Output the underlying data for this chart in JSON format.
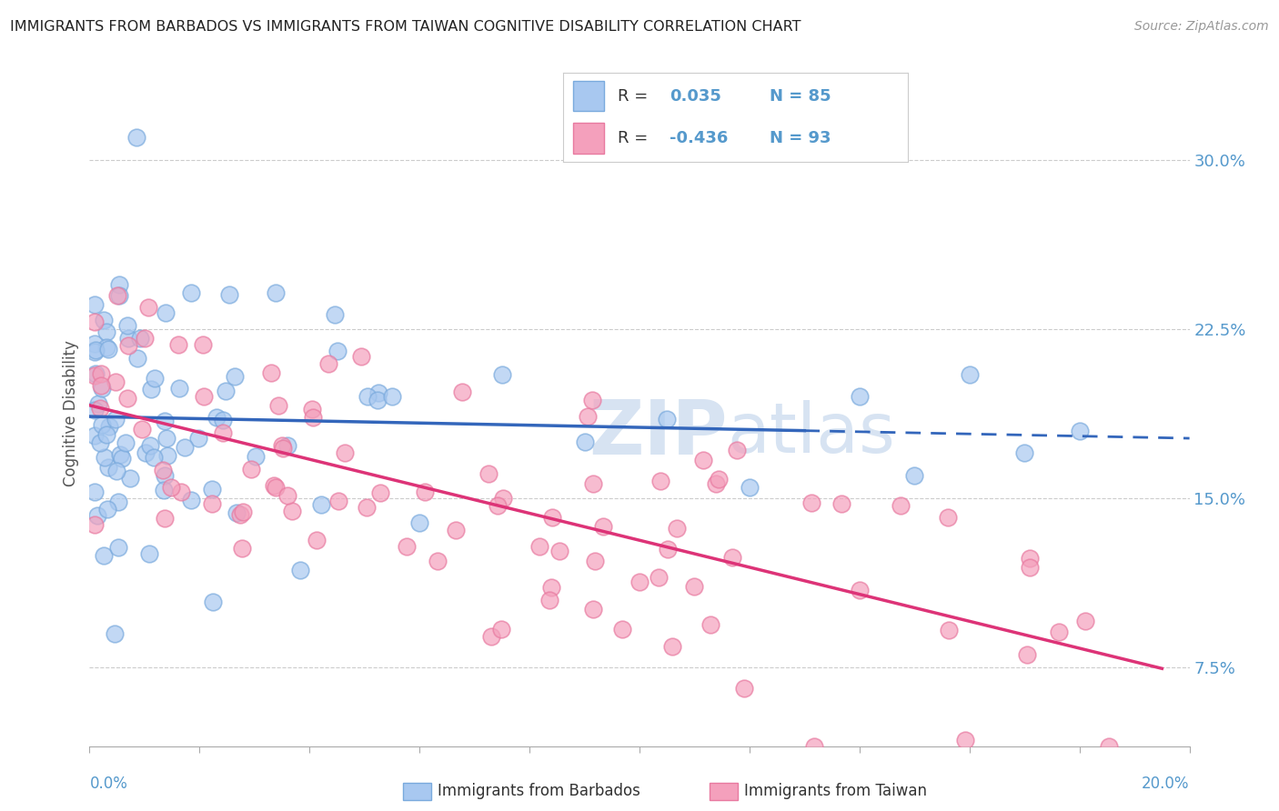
{
  "title": "IMMIGRANTS FROM BARBADOS VS IMMIGRANTS FROM TAIWAN COGNITIVE DISABILITY CORRELATION CHART",
  "source": "Source: ZipAtlas.com",
  "ylabel": "Cognitive Disability",
  "legend_barbados": "Immigrants from Barbados",
  "legend_taiwan": "Immigrants from Taiwan",
  "r_barbados": 0.035,
  "n_barbados": 85,
  "r_taiwan": -0.436,
  "n_taiwan": 93,
  "xmin": 0.0,
  "xmax": 0.2,
  "ymin": 0.04,
  "ymax": 0.335,
  "yticks": [
    0.075,
    0.15,
    0.225,
    0.3
  ],
  "ytick_labels": [
    "7.5%",
    "15.0%",
    "22.5%",
    "30.0%"
  ],
  "color_barbados": "#a8c8f0",
  "color_taiwan": "#f4a0bc",
  "edge_barbados": "#7aaadd",
  "edge_taiwan": "#e87aa0",
  "line_color_barbados": "#3366bb",
  "line_color_taiwan": "#dd3377",
  "background_color": "#ffffff",
  "grid_color": "#cccccc",
  "axis_color": "#aaaaaa",
  "label_color": "#5599cc",
  "text_color": "#333333",
  "watermark_color": "#d0dff0"
}
